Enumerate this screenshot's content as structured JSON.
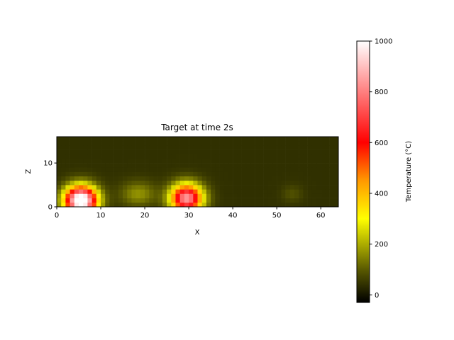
{
  "chart_data": {
    "type": "heatmap",
    "title": "Target at time 2s",
    "xlabel": "X",
    "ylabel": "Z",
    "xlim": [
      0,
      64
    ],
    "ylim": [
      0,
      16
    ],
    "x_ticks": [
      0,
      10,
      20,
      30,
      40,
      50,
      60
    ],
    "y_ticks": [
      0,
      10
    ],
    "grid_size": [
      64,
      16
    ],
    "background_value": 40,
    "hotspots": [
      {
        "x": 5.5,
        "z": 1.5,
        "peak": 1150,
        "radius_x": 4.5,
        "radius_z": 4.0
      },
      {
        "x": 18.5,
        "z": 3.0,
        "peak": 170,
        "radius_x": 5.0,
        "radius_z": 3.5
      },
      {
        "x": 29.5,
        "z": 2.0,
        "peak": 850,
        "radius_x": 4.5,
        "radius_z": 4.0
      },
      {
        "x": 53.5,
        "z": 3.0,
        "peak": 85,
        "radius_x": 3.0,
        "radius_z": 2.5
      }
    ],
    "colorbar": {
      "label": "Temperature (°C)",
      "min": -30,
      "max": 1000,
      "ticks": [
        0,
        200,
        400,
        600,
        800,
        1000
      ],
      "colormap": [
        {
          "v": -30,
          "color": "#000000"
        },
        {
          "v": 100,
          "color": "#5a5a00"
        },
        {
          "v": 300,
          "color": "#ffff00"
        },
        {
          "v": 450,
          "color": "#ff9900"
        },
        {
          "v": 600,
          "color": "#ff0000"
        },
        {
          "v": 800,
          "color": "#ff7f7f"
        },
        {
          "v": 1000,
          "color": "#ffffff"
        }
      ]
    }
  }
}
